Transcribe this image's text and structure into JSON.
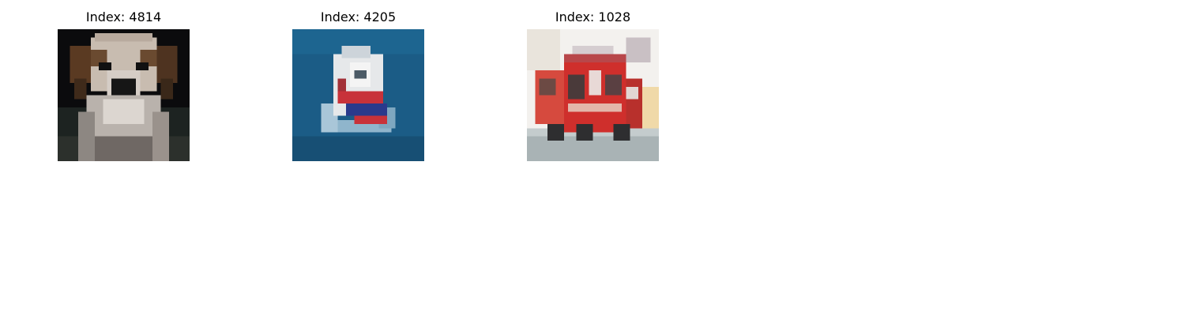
{
  "panels": [
    {
      "title": "Index: 4814",
      "subject": "dog"
    },
    {
      "title": "Index: 4205",
      "subject": "ship"
    },
    {
      "title": "Index: 1028",
      "subject": "fire-truck"
    }
  ]
}
